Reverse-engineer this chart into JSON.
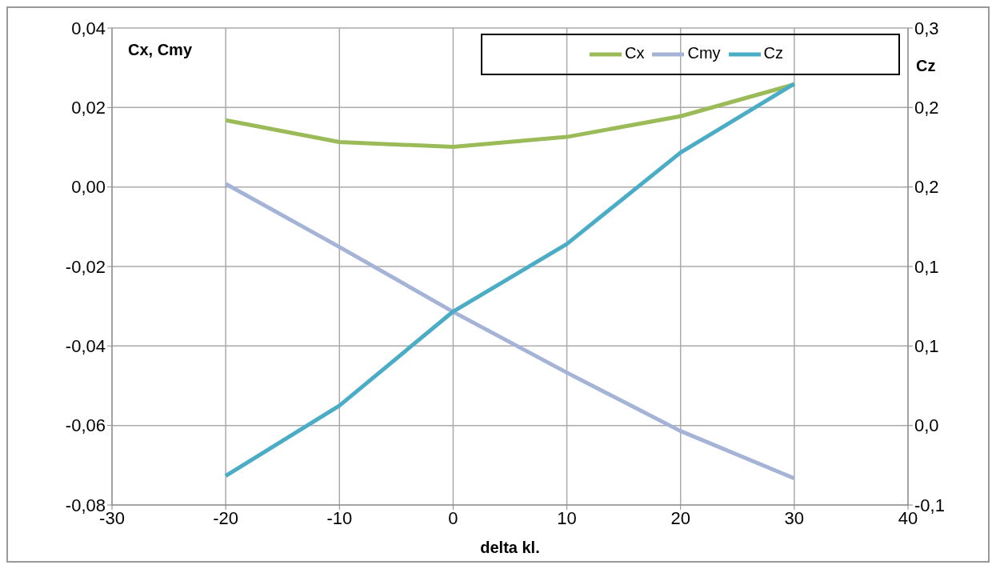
{
  "chart_data": {
    "type": "line",
    "xlabel": "delta kl.",
    "ylabel": "Cx, Cmy",
    "y2label": "Cz",
    "x": [
      -20,
      -10,
      0,
      10,
      20,
      30
    ],
    "series": [
      {
        "name": "Cx",
        "color": "#9bbb59",
        "values": [
          0.0168,
          0.0113,
          0.0101,
          0.0126,
          0.0178,
          0.0258
        ]
      },
      {
        "name": "Cmy",
        "color": "#a5b4d6",
        "values": [
          0.0008,
          -0.0151,
          -0.0314,
          -0.0467,
          -0.0614,
          -0.0733
        ]
      },
      {
        "name": "Cz",
        "color": "#4bacc6",
        "axis": "y2",
        "values": [
          -0.038,
          0.015,
          0.086,
          0.137,
          0.206,
          0.258
        ]
      }
    ],
    "xlim": [
      -30,
      40
    ],
    "xticks": [
      -30,
      -20,
      -10,
      0,
      10,
      20,
      30,
      40
    ],
    "ylim": [
      -0.08,
      0.04
    ],
    "yticks": [
      {
        "value": -0.08,
        "label": "-0,08"
      },
      {
        "value": -0.06,
        "label": "-0,06"
      },
      {
        "value": -0.04,
        "label": "-0,04"
      },
      {
        "value": -0.02,
        "label": "-0,02"
      },
      {
        "value": 0,
        "label": "0,00"
      },
      {
        "value": 0.02,
        "label": "0,02"
      },
      {
        "value": 0.04,
        "label": "0,04"
      }
    ],
    "y2lim": [
      -0.06,
      0.3
    ],
    "y2ticks": [
      {
        "value": -0.06,
        "label": "-0,1"
      },
      {
        "value": 0,
        "label": "0,0"
      },
      {
        "value": 0.06,
        "label": "0,1"
      },
      {
        "value": 0.12,
        "label": "0,1"
      },
      {
        "value": 0.18,
        "label": "0,2"
      },
      {
        "value": 0.24,
        "label": "0,2"
      },
      {
        "value": 0.3,
        "label": "0,3"
      }
    ],
    "grid": true,
    "legend": "top right",
    "marker": "none",
    "line_style": "solid"
  }
}
